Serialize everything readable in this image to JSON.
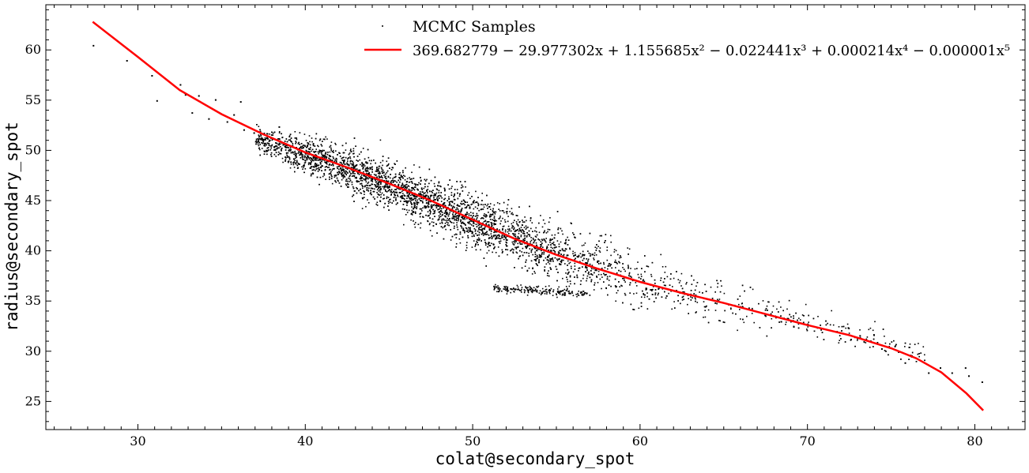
{
  "chart_data": {
    "type": "scatter",
    "xlabel": "colat@secondary_spot",
    "ylabel": "radius@secondary_spot",
    "xlim": [
      24.5,
      83
    ],
    "ylim": [
      22.2,
      64.5
    ],
    "x_ticks": [
      30,
      40,
      50,
      60,
      70,
      80
    ],
    "y_ticks": [
      25,
      30,
      35,
      40,
      45,
      50,
      55,
      60
    ],
    "grid": false,
    "legend_position": "top-right",
    "series": [
      {
        "name": "MCMC Samples",
        "kind": "scatter",
        "color": "#000000",
        "band": {
          "x_range": [
            37,
            77
          ],
          "center": [
            [
              37,
              51.2
            ],
            [
              40,
              49.6
            ],
            [
              45,
              46.6
            ],
            [
              50,
              43.0
            ],
            [
              55,
              39.7
            ],
            [
              60,
              37.0
            ],
            [
              65,
              34.8
            ],
            [
              70,
              32.9
            ],
            [
              75,
              30.8
            ],
            [
              77,
              29.6
            ]
          ],
          "half_width": [
            [
              37,
              1.2
            ],
            [
              42,
              2.0
            ],
            [
              50,
              2.6
            ],
            [
              58,
              2.6
            ],
            [
              65,
              2.1
            ],
            [
              72,
              1.4
            ],
            [
              77,
              1.0
            ]
          ]
        },
        "sparse_points": [
          [
            27.3,
            60.5
          ],
          [
            29.3,
            59.0
          ],
          [
            30.8,
            57.5
          ],
          [
            31.1,
            55.0
          ],
          [
            32.5,
            56.6
          ],
          [
            32.8,
            55.6
          ],
          [
            33.2,
            53.8
          ],
          [
            33.6,
            55.5
          ],
          [
            34.2,
            53.2
          ],
          [
            34.6,
            55.1
          ],
          [
            35.3,
            52.9
          ],
          [
            35.7,
            53.6
          ],
          [
            36.1,
            54.9
          ],
          [
            36.3,
            52.1
          ],
          [
            36.9,
            51.8
          ],
          [
            37.4,
            51.2
          ],
          [
            38.4,
            52.4
          ],
          [
            39.1,
            48.9
          ],
          [
            75.8,
            28.9
          ],
          [
            76.2,
            29.6
          ],
          [
            77.2,
            27.9
          ],
          [
            77.9,
            28.4
          ],
          [
            78.6,
            27.9
          ],
          [
            79.4,
            28.4
          ],
          [
            79.6,
            27.6
          ],
          [
            80.4,
            27.0
          ],
          [
            74.4,
            30.3
          ],
          [
            73.1,
            31.6
          ],
          [
            72.4,
            32.4
          ]
        ],
        "dense_clusters": [
          {
            "x_range": [
              51.2,
              56.8
            ],
            "y_center": 35.8,
            "y_spread": 0.4
          }
        ]
      },
      {
        "name": "369.682779 − 29.977302x + 1.155685x² − 0.022441x³ + 0.000214x⁴ − 0.000001x⁵",
        "kind": "line",
        "color": "#ff0000",
        "x_range": [
          27.3,
          80.5
        ],
        "points": [
          [
            27.3,
            62.8
          ],
          [
            30,
            59.3
          ],
          [
            32.5,
            56.0
          ],
          [
            35,
            53.6
          ],
          [
            37.5,
            51.6
          ],
          [
            40,
            49.8
          ],
          [
            42.5,
            48.3
          ],
          [
            45,
            46.7
          ],
          [
            47.5,
            45.0
          ],
          [
            50,
            43.1
          ],
          [
            52.5,
            41.2
          ],
          [
            55,
            39.6
          ],
          [
            57.5,
            38.2
          ],
          [
            60,
            36.9
          ],
          [
            62.5,
            35.8
          ],
          [
            65,
            34.8
          ],
          [
            67.5,
            33.7
          ],
          [
            70,
            32.6
          ],
          [
            72.5,
            31.6
          ],
          [
            75,
            30.3
          ],
          [
            76.5,
            29.3
          ],
          [
            78,
            27.9
          ],
          [
            79.5,
            25.8
          ],
          [
            80.5,
            24.1
          ]
        ]
      }
    ]
  },
  "legend": {
    "entries": [
      {
        "label": "MCMC Samples",
        "marker": "point",
        "color": "#000000"
      },
      {
        "label": "369.682779 − 29.977302x + 1.155685x² − 0.022441x³ + 0.000214x⁴ − 0.000001x⁵",
        "marker": "line",
        "color": "#ff0000"
      }
    ]
  }
}
